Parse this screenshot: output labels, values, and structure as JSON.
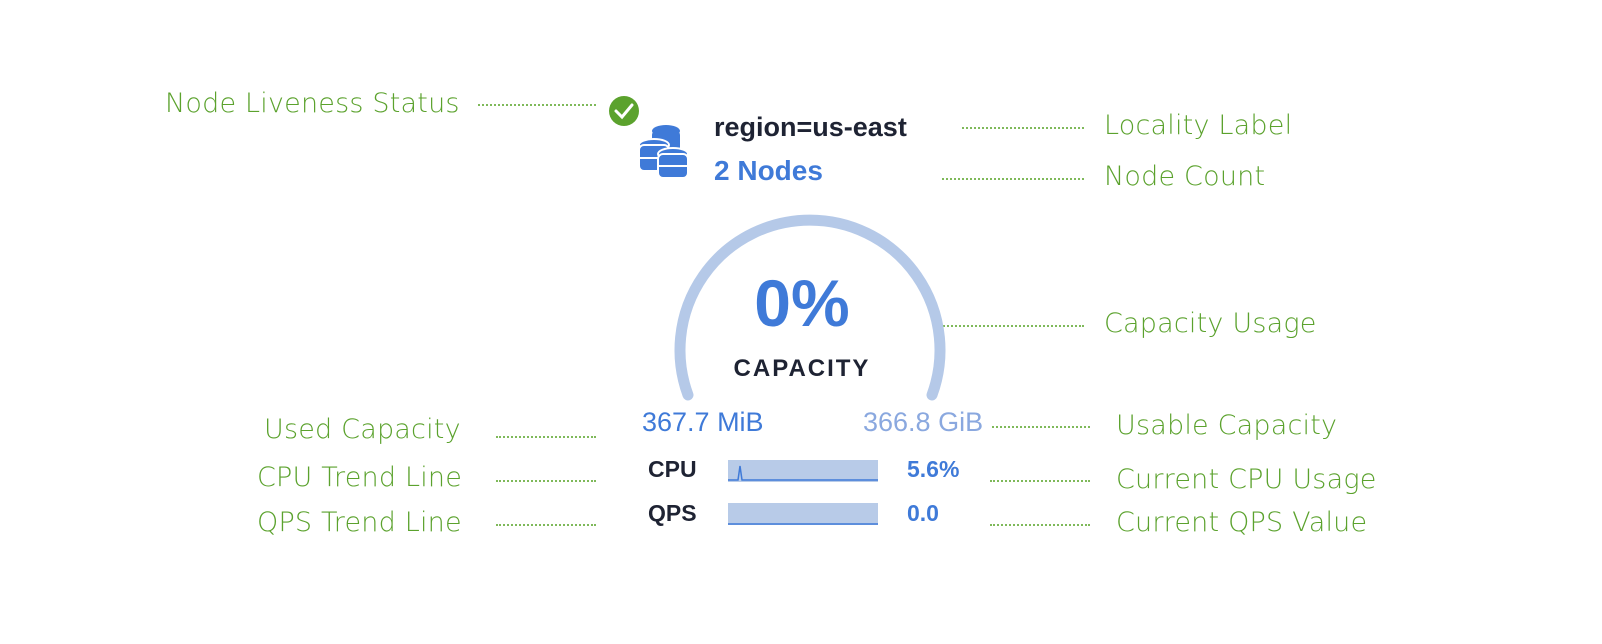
{
  "widget": {
    "locality_label": "region=us-east",
    "node_count": "2 Nodes",
    "capacity_percent": "0%",
    "capacity_label": "CAPACITY",
    "capacity_fraction": 0.0,
    "used_capacity": "367.7 MiB",
    "usable_capacity": "366.8 GiB",
    "cpu_label": "CPU",
    "cpu_value": "5.6%",
    "qps_label": "QPS",
    "qps_value": "0.0",
    "liveness_icon": "check-circle-icon",
    "node_icon": "database-icon",
    "colors": {
      "blue": "#3f7ad8",
      "gauge": "#b5c9e8",
      "live": "#5ba22d",
      "dark": "#1e2333"
    }
  },
  "annotations": {
    "liveness": "Node Liveness Status",
    "locality": "Locality Label",
    "node_count": "Node Count",
    "capacity_usage": "Capacity Usage",
    "used_capacity": "Used Capacity",
    "usable_capacity": "Usable Capacity",
    "cpu_trend": "CPU Trend Line",
    "current_cpu": "Current CPU Usage",
    "qps_trend": "QPS Trend Line",
    "current_qps": "Current QPS Value"
  }
}
